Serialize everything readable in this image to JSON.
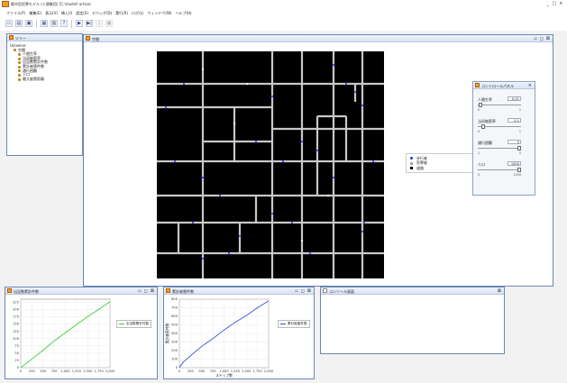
{
  "window": {
    "title": "都市型犯罪モデル (人間集団) [C:\\model\\ artisoc",
    "controls": [
      "_",
      "□",
      "×"
    ]
  },
  "menu": [
    "ファイル(F)",
    "編集(E)",
    "表示(V)",
    "挿入(I)",
    "設定(S)",
    "デバッグ(D)",
    "実行(R)",
    "ログ(L)",
    "ウィンドウ(W)",
    "ヘルプ(H)"
  ],
  "toolbar": {
    "buttons": [
      {
        "name": "new-file",
        "glyph": "▭"
      },
      {
        "name": "open-file",
        "glyph": "▤"
      },
      {
        "name": "save-file",
        "glyph": "▣"
      },
      {
        "name": "separator",
        "glyph": ""
      },
      {
        "name": "output-settings",
        "glyph": "▦"
      },
      {
        "name": "tree-view",
        "glyph": "▥"
      },
      {
        "name": "help",
        "glyph": "?"
      },
      {
        "name": "separator",
        "glyph": ""
      },
      {
        "name": "run",
        "glyph": "▶"
      },
      {
        "name": "step",
        "glyph": "▶|"
      },
      {
        "name": "pause",
        "glyph": "||"
      },
      {
        "name": "stop",
        "glyph": "■"
      }
    ]
  },
  "tree": {
    "title": "ツリー",
    "items": [
      {
        "label": "Universe",
        "level": 0
      },
      {
        "label": "空間",
        "level": 1
      },
      {
        "label": "人間生率",
        "level": 2
      },
      {
        "label": "当初被罰率",
        "level": 2
      },
      {
        "label": "出没数累計件数",
        "level": 2
      },
      {
        "label": "累計被害件数",
        "level": 2
      },
      {
        "label": "通行困難",
        "level": 2
      },
      {
        "label": "人口",
        "level": 2
      },
      {
        "label": "最大被害距離",
        "level": 2
      }
    ]
  },
  "space": {
    "title": "空間",
    "legend": [
      {
        "label": "歩行者",
        "color": "#2233dd"
      },
      {
        "label": "犯罪者",
        "color": "#ffffff"
      },
      {
        "label": "道路",
        "color": "#111111"
      }
    ]
  },
  "controller": {
    "title": "コントロールパネル",
    "params": [
      {
        "name": "人間生率",
        "value": "0.01",
        "min": "0",
        "max": "1",
        "level": 0.02
      },
      {
        "name": "当初被罰率",
        "value": "0.1",
        "min": "0",
        "max": "1",
        "level": 0.1
      },
      {
        "name": "通行困難",
        "value": "5",
        "min": "1",
        "max": "5",
        "level": 1.0
      },
      {
        "name": "人口",
        "value": "1000",
        "min": "0",
        "max": "1000",
        "level": 1.0
      }
    ]
  },
  "charts": [
    {
      "frame_title": "出没数累計件数",
      "legend": "出没数累計件数",
      "color": "#3ecf3e",
      "chart_data": {
        "type": "line",
        "x": [
          0,
          250,
          500,
          750,
          1000,
          1250,
          1500,
          1750,
          2000
        ],
        "y": [
          0,
          30,
          60,
          92,
          120,
          148,
          175,
          200,
          226
        ],
        "xticks": [
          "0",
          "250",
          "500",
          "750",
          "1,000",
          "1,250",
          "1,500",
          "1,750",
          "2,000"
        ],
        "yticks": [
          "0",
          "25",
          "50",
          "75",
          "100",
          "125",
          "150",
          "175",
          "200",
          "225"
        ],
        "xlim": [
          0,
          2000
        ],
        "ylim": [
          0,
          235
        ],
        "xlabel": "",
        "ylabel": ""
      }
    },
    {
      "frame_title": "累計被害件数",
      "legend": "累計被害件数",
      "color": "#3b4fd8",
      "chart_data": {
        "type": "line",
        "x": [
          0,
          50,
          100,
          250,
          500,
          750,
          1000,
          1250,
          1500,
          1750,
          2000
        ],
        "y": [
          0,
          40,
          70,
          140,
          250,
          340,
          440,
          530,
          610,
          700,
          780
        ],
        "xticks": [
          "0",
          "250",
          "500",
          "750",
          "1,000",
          "1,250",
          "1,500",
          "1,750",
          "2,000"
        ],
        "yticks": [
          "0",
          "100",
          "200",
          "300",
          "400",
          "500",
          "600",
          "700",
          "800"
        ],
        "xlim": [
          0,
          2000
        ],
        "ylim": [
          0,
          800
        ],
        "xlabel": "ステップ数",
        "ylabel": "累計被害件数"
      }
    }
  ],
  "console": {
    "title": "コンソール画面"
  }
}
